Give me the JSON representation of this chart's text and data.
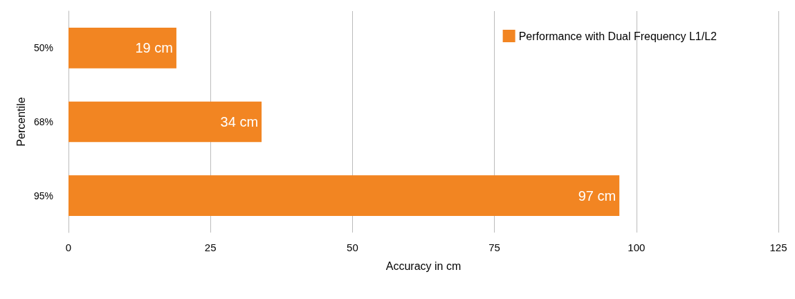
{
  "chart_data": {
    "type": "bar",
    "orientation": "horizontal",
    "categories": [
      "50%",
      "68%",
      "95%"
    ],
    "series": [
      {
        "name": "Performance with Dual Frequency L1/L2",
        "color": "#f28522",
        "values": [
          19,
          34,
          97
        ],
        "value_labels": [
          "19 cm",
          "34 cm",
          "97 cm"
        ]
      }
    ],
    "xlim": [
      0,
      125
    ],
    "xticks": [
      0,
      25,
      50,
      75,
      100,
      125
    ],
    "xlabel": "Accuracy in cm",
    "ylabel": "Percentile",
    "grid": "x",
    "legend": "top right"
  }
}
